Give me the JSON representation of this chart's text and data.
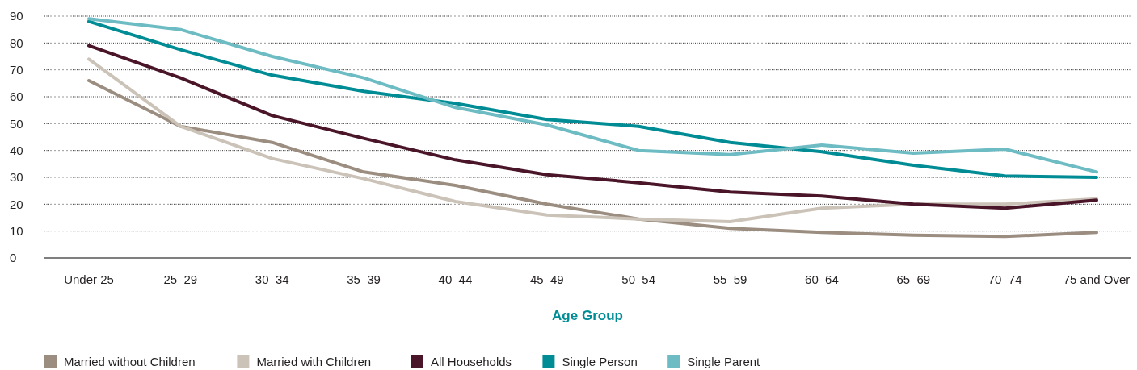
{
  "chart_data": {
    "type": "line",
    "xlabel": "Age Group",
    "categories": [
      "Under 25",
      "25–29",
      "30–34",
      "35–39",
      "40–44",
      "45–49",
      "50–54",
      "55–59",
      "60–64",
      "65–69",
      "70–74",
      "75 and Over"
    ],
    "ylim": [
      0,
      90
    ],
    "yticks": [
      0,
      10,
      20,
      30,
      40,
      50,
      60,
      70,
      80,
      90
    ],
    "grid": "y",
    "legend": "bottom",
    "marker": "none",
    "line_style": "solid",
    "series": [
      {
        "name": "Married without Children",
        "color": "#9b8d80",
        "values": [
          66,
          49,
          43,
          32,
          27,
          20,
          14.5,
          11,
          9.5,
          8.5,
          8,
          9.5
        ]
      },
      {
        "name": "Married with Children",
        "color": "#cbc2b8",
        "values": [
          74,
          49,
          37,
          29.5,
          21,
          16,
          14.5,
          13.5,
          18.5,
          20,
          20,
          22
        ]
      },
      {
        "name": "All Households",
        "color": "#4a1528",
        "values": [
          79,
          67,
          53,
          44.5,
          36.5,
          31,
          28,
          24.5,
          23,
          20,
          18.5,
          21.5
        ]
      },
      {
        "name": "Single Person",
        "color": "#008c95",
        "values": [
          88,
          77.5,
          68,
          62,
          57.5,
          51.5,
          49,
          43,
          39.5,
          34.5,
          30.5,
          30
        ]
      },
      {
        "name": "Single Parent",
        "color": "#6dbbc3",
        "values": [
          89,
          85,
          75,
          67,
          56,
          49.5,
          40,
          38.5,
          42,
          39,
          40.5,
          32
        ]
      }
    ]
  }
}
